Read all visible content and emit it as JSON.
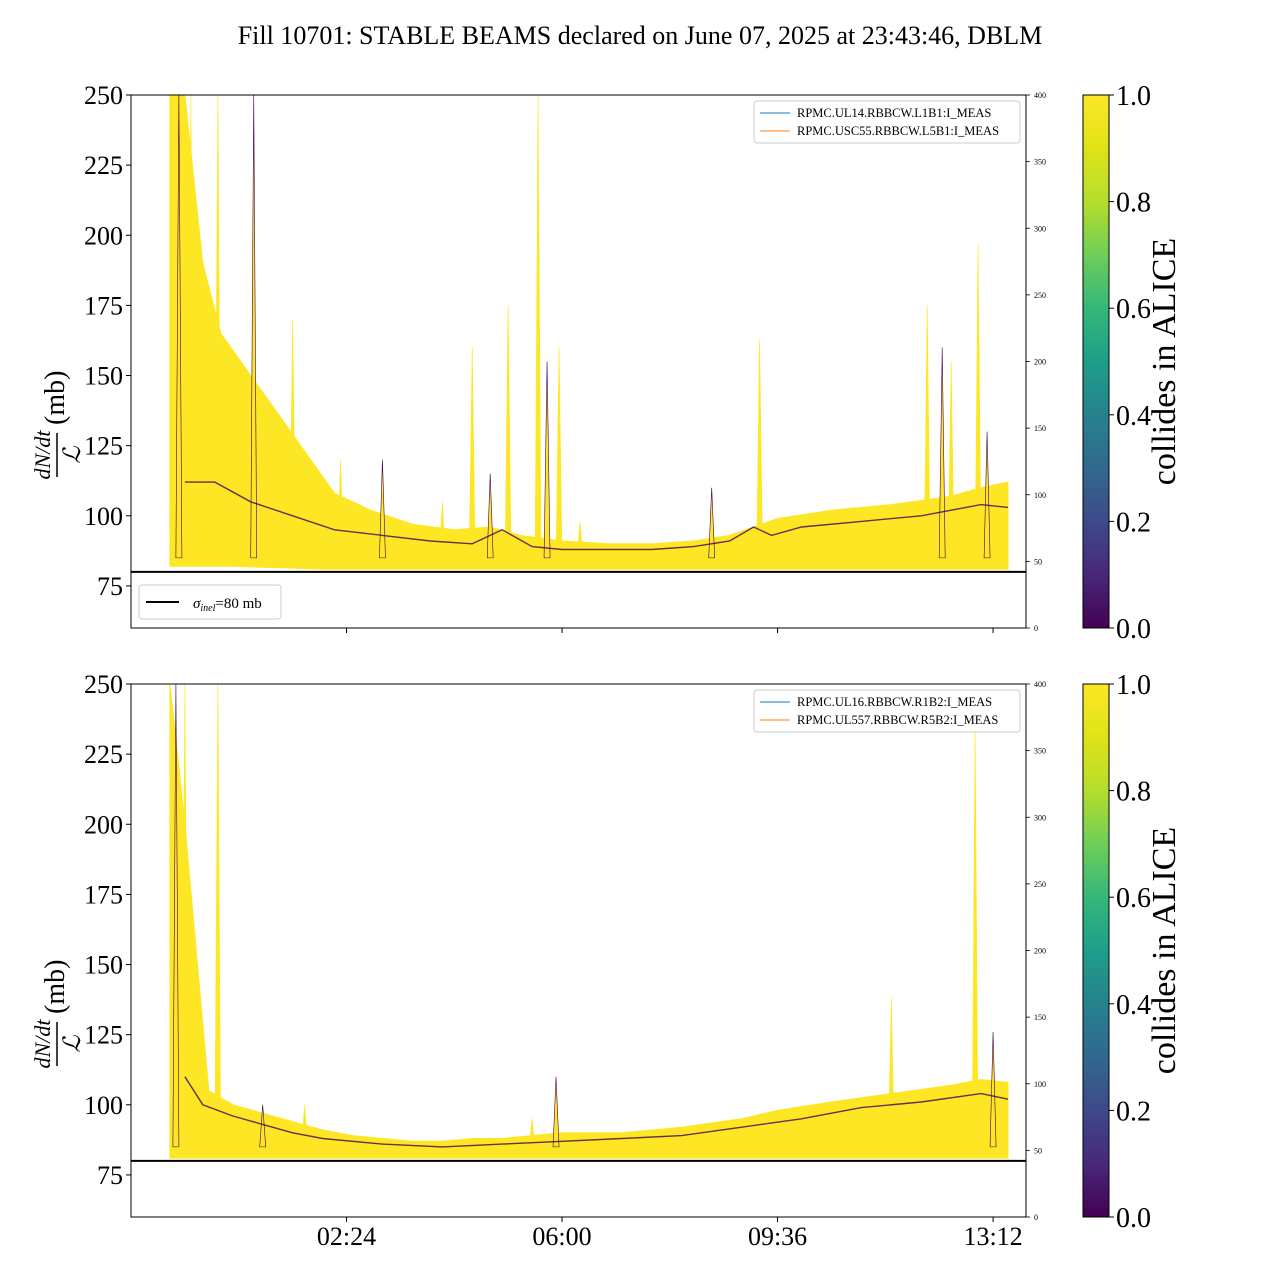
{
  "title": "Fill 10701: STABLE BEAMS declared on June 07, 2025 at 23:43:46, DBLM",
  "chart_data": [
    {
      "type": "line",
      "panel": "top",
      "ylabel_num": "dN/dt",
      "ylabel_den": "ℒ",
      "ylabel_unit": "(mb)",
      "ylim": [
        60,
        250
      ],
      "yticks": [
        75,
        100,
        125,
        150,
        175,
        200,
        225,
        250
      ],
      "y2lim": [
        0,
        400
      ],
      "y2ticks": [
        0,
        50,
        100,
        150,
        200,
        250,
        300,
        350,
        400
      ],
      "xlim_hours": [
        -1.2,
        13.75
      ],
      "xticks": [
        "02:24",
        "06:00",
        "09:36",
        "13:12"
      ],
      "xtick_hours": [
        2.4,
        6.0,
        9.6,
        13.2
      ],
      "legend_top": [
        "RPMC.UL14.RBBCW.L1B1:I_MEAS",
        "RPMC.USC55.RBBCW.L5B1:I_MEAS"
      ],
      "reference_line": {
        "value": 80,
        "label_symbol": "σ",
        "label_sub": "inel",
        "label_rest": "=80 mb"
      },
      "band_upper": [
        [
          -0.55,
          250
        ],
        [
          -0.3,
          250
        ],
        [
          0.0,
          190
        ],
        [
          0.3,
          165
        ],
        [
          0.8,
          150
        ],
        [
          1.3,
          135
        ],
        [
          1.8,
          120
        ],
        [
          2.2,
          108
        ],
        [
          2.8,
          102
        ],
        [
          3.5,
          97
        ],
        [
          4.2,
          95
        ],
        [
          4.8,
          96
        ],
        [
          5.3,
          93
        ],
        [
          6.0,
          91
        ],
        [
          6.8,
          90
        ],
        [
          7.5,
          90
        ],
        [
          8.2,
          91
        ],
        [
          8.8,
          93
        ],
        [
          9.2,
          96
        ],
        [
          9.6,
          99
        ],
        [
          10.5,
          102
        ],
        [
          11.5,
          104
        ],
        [
          12.5,
          107
        ],
        [
          13.0,
          110
        ],
        [
          13.45,
          112
        ]
      ],
      "band_lower": [
        [
          -0.55,
          82
        ],
        [
          0.5,
          82
        ],
        [
          2.0,
          81
        ],
        [
          4.0,
          81
        ],
        [
          6.0,
          81
        ],
        [
          8.0,
          81
        ],
        [
          10.0,
          81
        ],
        [
          12.0,
          81
        ],
        [
          13.45,
          81
        ]
      ],
      "dark_trace": [
        [
          -0.3,
          112
        ],
        [
          0.2,
          112
        ],
        [
          0.8,
          105
        ],
        [
          1.5,
          100
        ],
        [
          2.2,
          95
        ],
        [
          3.0,
          93
        ],
        [
          3.8,
          91
        ],
        [
          4.5,
          90
        ],
        [
          5.0,
          95
        ],
        [
          5.5,
          89
        ],
        [
          6.0,
          88
        ],
        [
          6.8,
          88
        ],
        [
          7.5,
          88
        ],
        [
          8.2,
          89
        ],
        [
          8.8,
          91
        ],
        [
          9.2,
          96
        ],
        [
          9.5,
          93
        ],
        [
          10.0,
          96
        ],
        [
          11.0,
          98
        ],
        [
          12.0,
          100
        ],
        [
          13.0,
          104
        ],
        [
          13.45,
          103
        ]
      ],
      "spikes": [
        [
          -0.4,
          250
        ],
        [
          -0.2,
          250
        ],
        [
          0.25,
          250
        ],
        [
          0.85,
          250
        ],
        [
          1.5,
          170
        ],
        [
          2.3,
          120
        ],
        [
          3.0,
          120
        ],
        [
          4.0,
          105
        ],
        [
          4.5,
          160
        ],
        [
          4.8,
          115
        ],
        [
          5.1,
          175
        ],
        [
          5.6,
          250
        ],
        [
          5.75,
          155
        ],
        [
          5.95,
          160
        ],
        [
          6.3,
          98
        ],
        [
          8.5,
          110
        ],
        [
          9.3,
          163
        ],
        [
          12.1,
          175
        ],
        [
          12.35,
          160
        ],
        [
          12.5,
          155
        ],
        [
          12.95,
          197
        ],
        [
          13.1,
          130
        ]
      ],
      "colorbar": {
        "label": "collides in ALICE",
        "ticks": [
          0.0,
          0.2,
          0.4,
          0.6,
          0.8,
          1.0
        ],
        "ticklabels": [
          "0.0",
          "0.2",
          "0.4",
          "0.6",
          "0.8",
          "1.0"
        ]
      }
    },
    {
      "type": "line",
      "panel": "bottom",
      "ylabel_num": "dN/dt",
      "ylabel_den": "ℒ",
      "ylabel_unit": "(mb)",
      "ylim": [
        60,
        250
      ],
      "yticks": [
        75,
        100,
        125,
        150,
        175,
        200,
        225,
        250
      ],
      "y2lim": [
        0,
        400
      ],
      "y2ticks": [
        0,
        50,
        100,
        150,
        200,
        250,
        300,
        350,
        400
      ],
      "xlim_hours": [
        -1.2,
        13.75
      ],
      "xticks": [
        "02:24",
        "06:00",
        "09:36",
        "13:12"
      ],
      "xtick_hours": [
        2.4,
        6.0,
        9.6,
        13.2
      ],
      "legend_top": [
        "RPMC.UL16.RBBCW.R1B2:I_MEAS",
        "RPMC.UL557.RBBCW.R5B2:I_MEAS"
      ],
      "reference_line": {
        "value": 80
      },
      "band_upper": [
        [
          -0.55,
          250
        ],
        [
          -0.3,
          200
        ],
        [
          0.1,
          105
        ],
        [
          0.5,
          100
        ],
        [
          1.0,
          97
        ],
        [
          1.5,
          94
        ],
        [
          2.0,
          91
        ],
        [
          2.5,
          89
        ],
        [
          3.0,
          88
        ],
        [
          3.5,
          87
        ],
        [
          4.0,
          87
        ],
        [
          4.5,
          88
        ],
        [
          5.0,
          88
        ],
        [
          5.5,
          89
        ],
        [
          6.0,
          90
        ],
        [
          7.0,
          90
        ],
        [
          8.0,
          92
        ],
        [
          9.0,
          95
        ],
        [
          9.6,
          98
        ],
        [
          10.5,
          101
        ],
        [
          11.5,
          104
        ],
        [
          12.5,
          107
        ],
        [
          13.0,
          109
        ],
        [
          13.45,
          108
        ]
      ],
      "band_lower": [
        [
          -0.55,
          81
        ],
        [
          1.0,
          81
        ],
        [
          3.0,
          81
        ],
        [
          6.0,
          81
        ],
        [
          9.0,
          81
        ],
        [
          12.0,
          81
        ],
        [
          13.45,
          81
        ]
      ],
      "dark_trace": [
        [
          -0.3,
          110
        ],
        [
          0.0,
          100
        ],
        [
          0.5,
          96
        ],
        [
          1.0,
          93
        ],
        [
          1.5,
          90
        ],
        [
          2.0,
          88
        ],
        [
          3.0,
          86
        ],
        [
          4.0,
          85
        ],
        [
          5.0,
          86
        ],
        [
          6.0,
          87
        ],
        [
          7.0,
          88
        ],
        [
          8.0,
          89
        ],
        [
          9.0,
          92
        ],
        [
          10.0,
          95
        ],
        [
          11.0,
          99
        ],
        [
          12.0,
          101
        ],
        [
          13.0,
          104
        ],
        [
          13.45,
          102
        ]
      ],
      "spikes": [
        [
          -0.45,
          250
        ],
        [
          -0.3,
          250
        ],
        [
          0.25,
          250
        ],
        [
          1.0,
          100
        ],
        [
          1.7,
          100
        ],
        [
          5.5,
          95
        ],
        [
          5.9,
          110
        ],
        [
          11.5,
          138
        ],
        [
          12.9,
          235
        ],
        [
          13.2,
          126
        ]
      ],
      "colorbar": {
        "label": "collides in ALICE",
        "ticks": [
          0.0,
          0.2,
          0.4,
          0.6,
          0.8,
          1.0
        ],
        "ticklabels": [
          "0.0",
          "0.2",
          "0.4",
          "0.6",
          "0.8",
          "1.0"
        ]
      }
    }
  ],
  "colors": {
    "yellow": "#fde725",
    "dark": "#440154",
    "line_blue": "#1f77b4",
    "line_orange": "#ff7f0e",
    "black": "#000000"
  }
}
